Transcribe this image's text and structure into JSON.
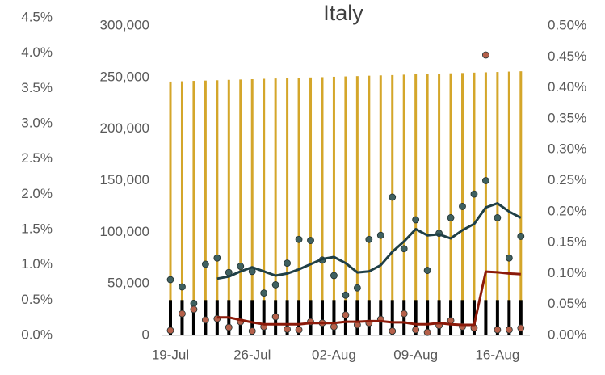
{
  "chart_data": {
    "type": "combo",
    "title": "Italy",
    "categories": [
      "19-Jul",
      null,
      null,
      null,
      null,
      null,
      null,
      "26-Jul",
      null,
      null,
      null,
      null,
      null,
      null,
      "02-Aug",
      null,
      null,
      null,
      null,
      null,
      null,
      "09-Aug",
      null,
      null,
      null,
      null,
      null,
      null,
      "16-Aug",
      null,
      null
    ],
    "ylim": [
      0,
      300000
    ],
    "yticks": [
      0,
      {
        "value": 50000,
        "label": "50,000"
      },
      {
        "value": 100000,
        "label": "100,000"
      },
      {
        "value": 150000,
        "label": "150,000"
      },
      {
        "value": 200000,
        "label": "200,000"
      },
      {
        "value": 250000,
        "label": "250,000"
      },
      {
        "value": 300000,
        "label": "300,000"
      }
    ],
    "y2lim": [
      0,
      0.5
    ],
    "y2ticks": [
      {
        "value": 0,
        "label": "0.00%"
      },
      {
        "value": 0.05,
        "label": "0.05%"
      },
      {
        "value": 0.1,
        "label": "0.10%"
      },
      {
        "value": 0.15,
        "label": "0.15%"
      },
      {
        "value": 0.2,
        "label": "0.20%"
      },
      {
        "value": 0.25,
        "label": "0.25%"
      },
      {
        "value": 0.3,
        "label": "0.30%"
      },
      {
        "value": 0.35,
        "label": "0.35%"
      },
      {
        "value": 0.4,
        "label": "0.40%"
      },
      {
        "value": 0.45,
        "label": "0.45%"
      },
      {
        "value": 0.5,
        "label": "0.50%"
      }
    ],
    "y3lim": [
      0,
      4.5
    ],
    "y3ticks": [
      {
        "value": 0,
        "label": "0.0%"
      },
      {
        "value": 0.5,
        "label": "0.5%"
      },
      {
        "value": 1,
        "label": "1.0%"
      },
      {
        "value": 1.5,
        "label": "1.5%"
      },
      {
        "value": 2,
        "label": "2.0%"
      },
      {
        "value": 2.5,
        "label": "2.5%"
      },
      {
        "value": 3,
        "label": "3.0%"
      },
      {
        "value": 3.5,
        "label": "3.5%"
      },
      {
        "value": 4,
        "label": "4.0%"
      },
      {
        "value": 4.5,
        "label": "4.5%"
      }
    ],
    "series": [
      {
        "kind": "bar",
        "axis": "y",
        "color": "#d4a62a",
        "values": [
          246000,
          246300,
          246700,
          247000,
          247300,
          247700,
          248000,
          248300,
          248700,
          249000,
          249300,
          249700,
          250000,
          250300,
          250700,
          251000,
          251300,
          251700,
          252000,
          252300,
          252700,
          253000,
          253300,
          253700,
          254000,
          254300,
          254700,
          255000,
          255300,
          255700,
          256000
        ]
      },
      {
        "kind": "bar",
        "axis": "y3",
        "color": "#000000",
        "values": [
          0.5,
          0.5,
          0.5,
          0.5,
          0.5,
          0.5,
          0.5,
          0.5,
          0.5,
          0.5,
          0.5,
          0.5,
          0.5,
          0.5,
          0.5,
          0.5,
          0.5,
          0.5,
          0.5,
          0.5,
          0.5,
          0.5,
          0.5,
          0.5,
          0.5,
          0.5,
          0.5,
          0.5,
          0.5,
          0.5,
          0.5
        ]
      },
      {
        "kind": "dots",
        "axis": "y",
        "color": "#3f6060",
        "values": [
          54000,
          47000,
          31000,
          69000,
          75000,
          61000,
          67000,
          62000,
          41000,
          49000,
          70000,
          93000,
          92000,
          73000,
          58000,
          39000,
          46000,
          93000,
          97000,
          134000,
          84000,
          112000,
          63000,
          99000,
          114000,
          125000,
          137000,
          150000,
          114000,
          75000,
          96000
        ]
      },
      {
        "kind": "line",
        "axis": "y",
        "color": "#1f3f46",
        "values": [
          null,
          null,
          null,
          null,
          55000,
          57000,
          62000,
          66000,
          62000,
          58000,
          60000,
          64000,
          69000,
          74000,
          76000,
          70000,
          61000,
          62000,
          68000,
          81000,
          91000,
          103000,
          97000,
          98000,
          94000,
          102000,
          108000,
          124000,
          128000,
          120000,
          114000
        ]
      },
      {
        "kind": "dots",
        "axis": "y2",
        "color": "#b5604a",
        "values": [
          0.008,
          0.035,
          0.042,
          0.025,
          0.027,
          0.013,
          0.022,
          0.007,
          0.014,
          0.03,
          0.01,
          0.009,
          0.022,
          0.02,
          0.014,
          0.033,
          0.017,
          0.02,
          0.026,
          0.007,
          0.035,
          0.009,
          0.005,
          0.016,
          0.024,
          0.014,
          0.012,
          0.453,
          0.009,
          0.009,
          0.012
        ]
      },
      {
        "kind": "line",
        "axis": "y2",
        "color": "#8b1a0a",
        "values": [
          null,
          null,
          null,
          null,
          0.029,
          0.029,
          0.025,
          0.021,
          0.018,
          0.018,
          0.018,
          0.018,
          0.02,
          0.02,
          0.02,
          0.022,
          0.022,
          0.023,
          0.023,
          0.021,
          0.021,
          0.018,
          0.018,
          0.02,
          0.018,
          0.017,
          0.017,
          0.103,
          0.102,
          0.1,
          0.099
        ]
      }
    ]
  }
}
